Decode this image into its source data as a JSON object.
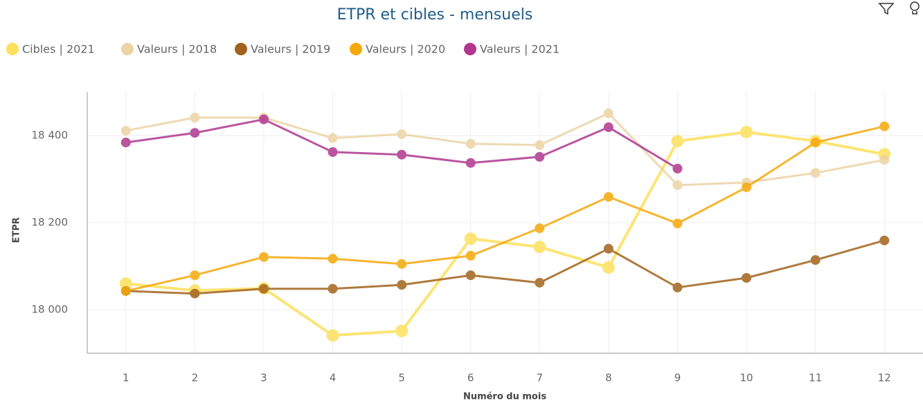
{
  "chart_data": {
    "type": "line",
    "title": "ETPR et cibles - mensuels",
    "x": [
      1,
      2,
      3,
      4,
      5,
      6,
      7,
      8,
      9,
      10,
      11,
      12
    ],
    "series": [
      {
        "name": "Cibles | 2021",
        "color": "#fde05c",
        "values": [
          18060,
          18044,
          18049,
          17941,
          17951,
          18163,
          18144,
          18097,
          18387,
          18408,
          18387,
          18357
        ]
      },
      {
        "name": "Valeurs | 2018",
        "color": "#ecd3a4",
        "values": [
          18411,
          18441,
          18441,
          18394,
          18403,
          18381,
          18378,
          18451,
          18286,
          18292,
          18314,
          18344
        ]
      },
      {
        "name": "Valeurs | 2019",
        "color": "#a2631c",
        "values": [
          18043,
          18037,
          18048,
          18048,
          18057,
          18079,
          18062,
          18140,
          18051,
          18073,
          18114,
          18159
        ]
      },
      {
        "name": "Valeurs | 2020",
        "color": "#f5a80a",
        "values": [
          18043,
          18079,
          18121,
          18117,
          18105,
          18124,
          18187,
          18259,
          18198,
          18281,
          18384,
          18421
        ]
      },
      {
        "name": "Valeurs | 2021",
        "color": "#b0378f",
        "values": [
          18384,
          18406,
          18437,
          18362,
          18356,
          18337,
          18351,
          18419,
          18324,
          null,
          null,
          null
        ]
      }
    ],
    "xlim": [
      0.44,
      12.56
    ],
    "xticks": [
      1,
      2,
      3,
      4,
      5,
      6,
      7,
      8,
      9,
      10,
      11,
      12
    ],
    "ylim": [
      17900,
      18500
    ],
    "yticks": [
      {
        "value": 18000,
        "label": "18 000"
      },
      {
        "value": 18200,
        "label": "18 200"
      },
      {
        "value": 18400,
        "label": "18 400"
      }
    ],
    "x_label": "Numéro du mois",
    "y_label": "ETPR",
    "grid": true
  }
}
